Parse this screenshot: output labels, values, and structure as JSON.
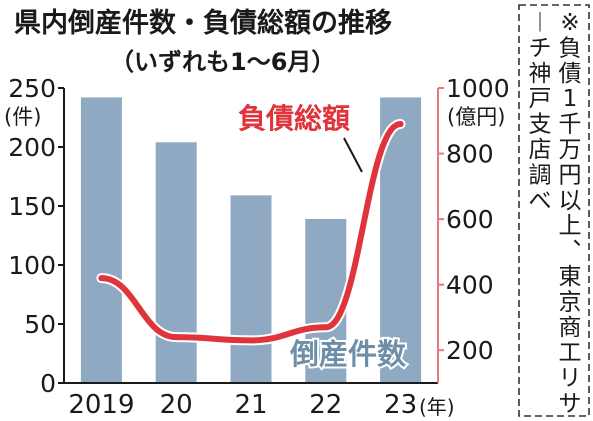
{
  "chart_data": {
    "type": "bar",
    "title": "県内倒産件数・負債総額の推移",
    "subtitle": "（いずれも1～6月）",
    "categories": [
      "2019",
      "20",
      "21",
      "22",
      "23"
    ],
    "x_unit": "(年)",
    "series": [
      {
        "name": "倒産件数",
        "type": "bar",
        "axis": "left",
        "color": "#8ea9c1",
        "values": [
          242,
          204,
          159,
          139,
          242
        ]
      },
      {
        "name": "負債総額",
        "type": "line",
        "axis": "right",
        "color": "#e0343c",
        "values": [
          420,
          240,
          230,
          270,
          890
        ]
      }
    ],
    "y_left": {
      "unit": "(件)",
      "ticks": [
        "0",
        "50",
        "100",
        "150",
        "200",
        "250"
      ],
      "lim": [
        0,
        250
      ],
      "color": "#1a1a1a"
    },
    "y_right": {
      "unit": "(億円)",
      "ticks": [
        "200",
        "400",
        "600",
        "800",
        "1000"
      ],
      "lim": [
        100,
        1000
      ],
      "color": "#1a1a1a"
    },
    "note": "※負債1千万円以上、東京商工リサーチ神戸支店調べ",
    "grid": false,
    "legend": "inline labels"
  }
}
